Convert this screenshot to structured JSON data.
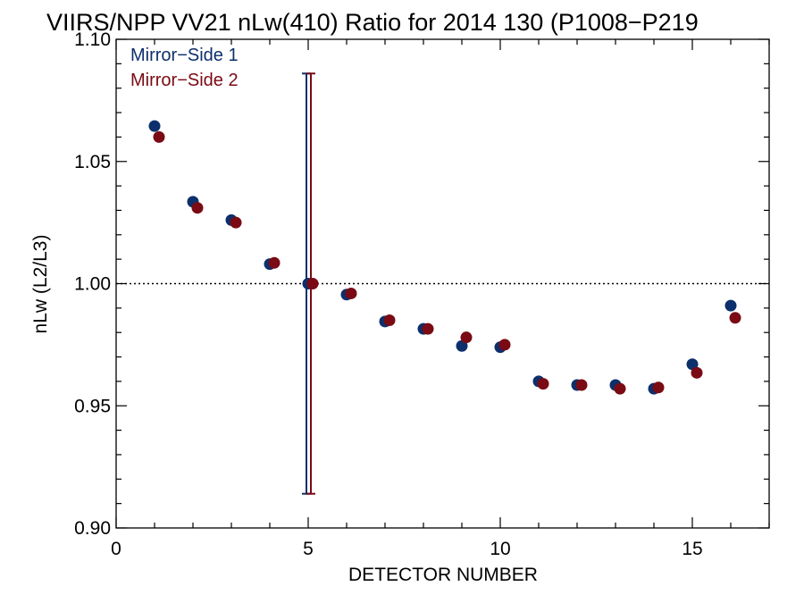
{
  "chart_data": {
    "type": "scatter",
    "title": "VIIRS/NPP VV21 nLw(410) Ratio for 2014 130 (P1008−P219",
    "xlabel": "DETECTOR NUMBER",
    "ylabel": "nLw (L2/L3)",
    "xlim": [
      0,
      17
    ],
    "ylim": [
      0.9,
      1.1
    ],
    "x_ticks": [
      {
        "value": 0,
        "label": "0"
      },
      {
        "value": 5,
        "label": "5"
      },
      {
        "value": 10,
        "label": "10"
      },
      {
        "value": 15,
        "label": "15"
      }
    ],
    "y_ticks": [
      {
        "value": 0.9,
        "label": "0.90"
      },
      {
        "value": 0.95,
        "label": "0.95"
      },
      {
        "value": 1.0,
        "label": "1.00"
      },
      {
        "value": 1.05,
        "label": "1.05"
      },
      {
        "value": 1.1,
        "label": "1.10"
      }
    ],
    "reference_line": {
      "y": 1.0,
      "style": "dotted"
    },
    "legend": {
      "placement": "top-left"
    },
    "series": [
      {
        "name": "Mirror−Side 1",
        "color": "#0d2f6b",
        "x": [
          1,
          2,
          3,
          4,
          5,
          6,
          7,
          8,
          9,
          10,
          11,
          12,
          13,
          14,
          15,
          16
        ],
        "y": [
          1.0645,
          1.0335,
          1.026,
          1.008,
          1.0,
          0.9955,
          0.9845,
          0.9815,
          0.9745,
          0.974,
          0.96,
          0.9585,
          0.9585,
          0.957,
          0.967,
          0.991
        ],
        "errorbar": {
          "x": 5,
          "low": 0.914,
          "high": 1.086
        }
      },
      {
        "name": "Mirror−Side 2",
        "color": "#7a0a14",
        "x": [
          1,
          2,
          3,
          4,
          5,
          6,
          7,
          8,
          9,
          10,
          11,
          12,
          13,
          14,
          15,
          16
        ],
        "y": [
          1.06,
          1.031,
          1.025,
          1.0085,
          1.0,
          0.996,
          0.985,
          0.9815,
          0.978,
          0.975,
          0.959,
          0.9585,
          0.957,
          0.9575,
          0.9635,
          0.986
        ],
        "errorbar": {
          "x": 5,
          "low": 0.914,
          "high": 1.086
        }
      }
    ]
  }
}
